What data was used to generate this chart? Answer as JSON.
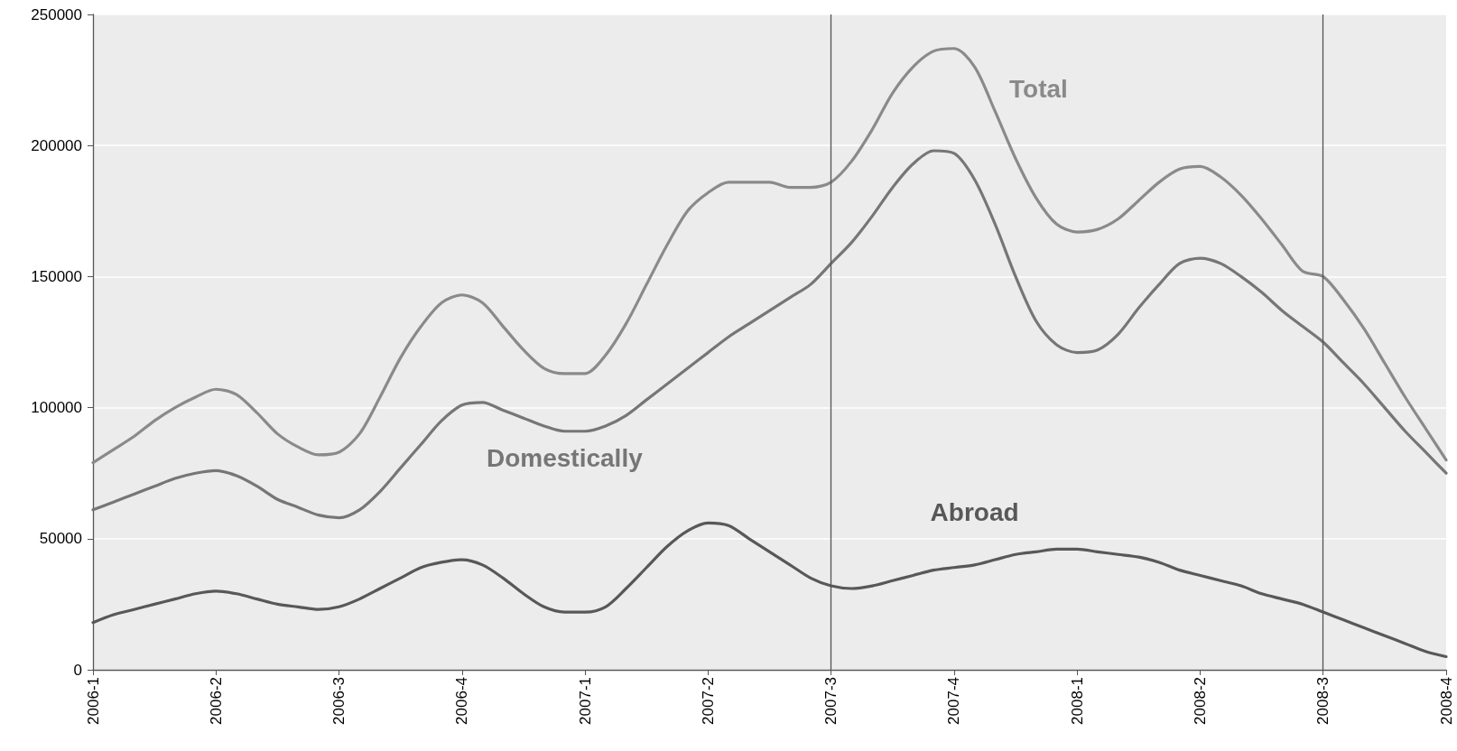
{
  "chart_data": {
    "type": "line",
    "categories": [
      "2006-1",
      null,
      null,
      null,
      null,
      null,
      "2006-2",
      null,
      null,
      null,
      null,
      null,
      "2006-3",
      null,
      null,
      null,
      null,
      null,
      "2006-4",
      null,
      null,
      null,
      null,
      null,
      "2007-1",
      null,
      null,
      null,
      null,
      null,
      "2007-2",
      null,
      null,
      null,
      null,
      null,
      "2007-3",
      null,
      null,
      null,
      null,
      null,
      "2007-4",
      null,
      null,
      null,
      null,
      null,
      "2008-1",
      null,
      null,
      null,
      null,
      null,
      "2008-2",
      null,
      null,
      null,
      null,
      null,
      "2008-3",
      null,
      null,
      null,
      null,
      null,
      "2008-4"
    ],
    "series": [
      {
        "name": "Total",
        "color": "#8a8a8a",
        "values": [
          79000,
          84000,
          89000,
          95000,
          100000,
          104000,
          107000,
          105000,
          98000,
          90000,
          85000,
          82000,
          83000,
          90000,
          104000,
          119000,
          131000,
          140000,
          143000,
          140000,
          131000,
          122000,
          115000,
          113000,
          113000,
          120000,
          132000,
          147000,
          162000,
          175000,
          182000,
          186000,
          186000,
          186000,
          184000,
          184000,
          186000,
          194000,
          206000,
          220000,
          230000,
          236000,
          237000,
          230000,
          213000,
          195000,
          180000,
          170000,
          167000,
          168000,
          172000,
          179000,
          186000,
          191000,
          192000,
          188000,
          181000,
          172000,
          162000,
          152000,
          150000,
          141000,
          130000,
          117000,
          104000,
          92000,
          80000
        ]
      },
      {
        "name": "Domestically",
        "color": "#767676",
        "values": [
          61000,
          64000,
          67000,
          70000,
          73000,
          75000,
          76000,
          74000,
          70000,
          65000,
          62000,
          59000,
          58000,
          61000,
          68000,
          77000,
          86000,
          95000,
          101000,
          102000,
          99000,
          96000,
          93000,
          91000,
          91000,
          93000,
          97000,
          103000,
          109000,
          115000,
          121000,
          127000,
          132000,
          137000,
          142000,
          147000,
          155000,
          163000,
          173000,
          184000,
          193000,
          198000,
          197000,
          187000,
          170000,
          150000,
          133000,
          124000,
          121000,
          122000,
          128000,
          138000,
          147000,
          155000,
          157000,
          155000,
          150000,
          144000,
          137000,
          131000,
          125000,
          117000,
          109000,
          100000,
          91000,
          83000,
          75000
        ]
      },
      {
        "name": "Abroad",
        "color": "#585858",
        "values": [
          18000,
          21000,
          23000,
          25000,
          27000,
          29000,
          30000,
          29000,
          27000,
          25000,
          24000,
          23000,
          24000,
          27000,
          31000,
          35000,
          39000,
          41000,
          42000,
          40000,
          35000,
          29000,
          24000,
          22000,
          22000,
          24000,
          31000,
          39000,
          47000,
          53000,
          56000,
          55000,
          50000,
          45000,
          40000,
          35000,
          32000,
          31000,
          32000,
          34000,
          36000,
          38000,
          39000,
          40000,
          42000,
          44000,
          45000,
          46000,
          46000,
          45000,
          44000,
          43000,
          41000,
          38000,
          36000,
          34000,
          32000,
          29000,
          27000,
          25000,
          22000,
          19000,
          16000,
          13000,
          10000,
          7000,
          5000
        ]
      }
    ],
    "ylim": [
      0,
      250000
    ],
    "yticks": [
      0,
      50000,
      100000,
      150000,
      200000,
      250000
    ],
    "ref_lines": [
      {
        "axis": "x",
        "value": "2007-3",
        "color": "#555555"
      },
      {
        "axis": "x",
        "value": "2008-3",
        "color": "#555555"
      }
    ],
    "grid": "y",
    "legend": false,
    "marker": "none",
    "line_style": "solid"
  }
}
